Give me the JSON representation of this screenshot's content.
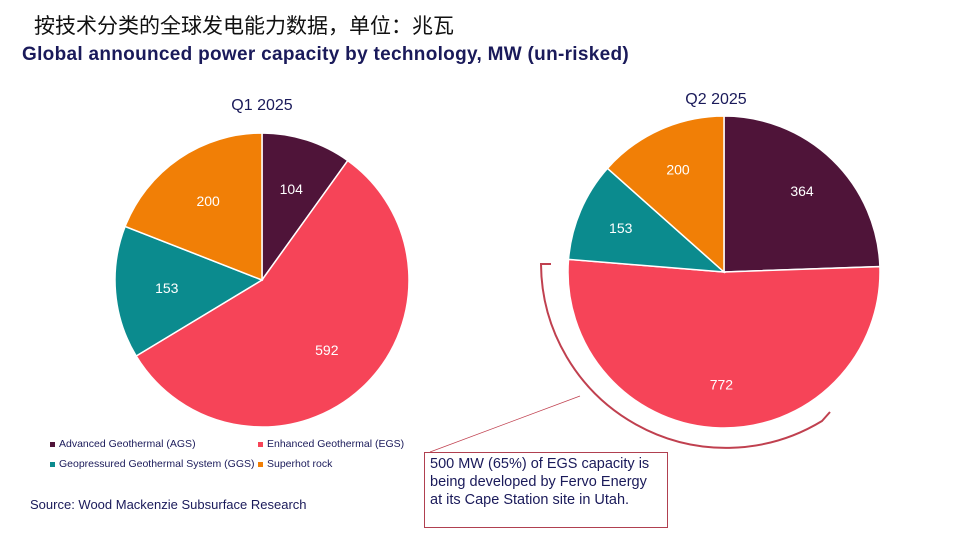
{
  "title_cn": "按技术分类的全球发电能力数据，单位：兆瓦",
  "title_en": "Global announced power capacity by technology, MW (un-risked)",
  "source": "Source: Wood Mackenzie Subsurface Research",
  "callout": "500 MW (65%) of EGS capacity is being developed by Fervo Energy at its Cape Station site in Utah.",
  "chart_data": [
    {
      "type": "pie",
      "title": "Q1 2025",
      "labels": [
        "Advanced Geothermal (AGS)",
        "Enhanced Geothermal (EGS)",
        "Geopressured Geothermal System (GGS)",
        "Superhot rock"
      ],
      "values": [
        104,
        592,
        153,
        200
      ],
      "colors": [
        "#4f1439",
        "#f64458",
        "#0b8b8e",
        "#f17f06"
      ],
      "start": "top",
      "direction": "clockwise",
      "legend": "bottom"
    },
    {
      "type": "pie",
      "title": "Q2 2025",
      "labels": [
        "Advanced Geothermal (AGS)",
        "Enhanced Geothermal (EGS)",
        "Geopressured Geothermal System (GGS)",
        "Superhot rock"
      ],
      "values": [
        364,
        772,
        153,
        200
      ],
      "colors": [
        "#4f1439",
        "#f64458",
        "#0b8b8e",
        "#f17f06"
      ],
      "start": "top",
      "direction": "clockwise"
    }
  ],
  "legend": [
    {
      "label": "Advanced Geothermal (AGS)",
      "color": "#4f1439"
    },
    {
      "label": "Enhanced Geothermal (EGS)",
      "color": "#f64458"
    },
    {
      "label": "Geopressured Geothermal System (GGS)",
      "color": "#0b8b8e"
    },
    {
      "label": "Superhot rock",
      "color": "#f17f06"
    }
  ]
}
